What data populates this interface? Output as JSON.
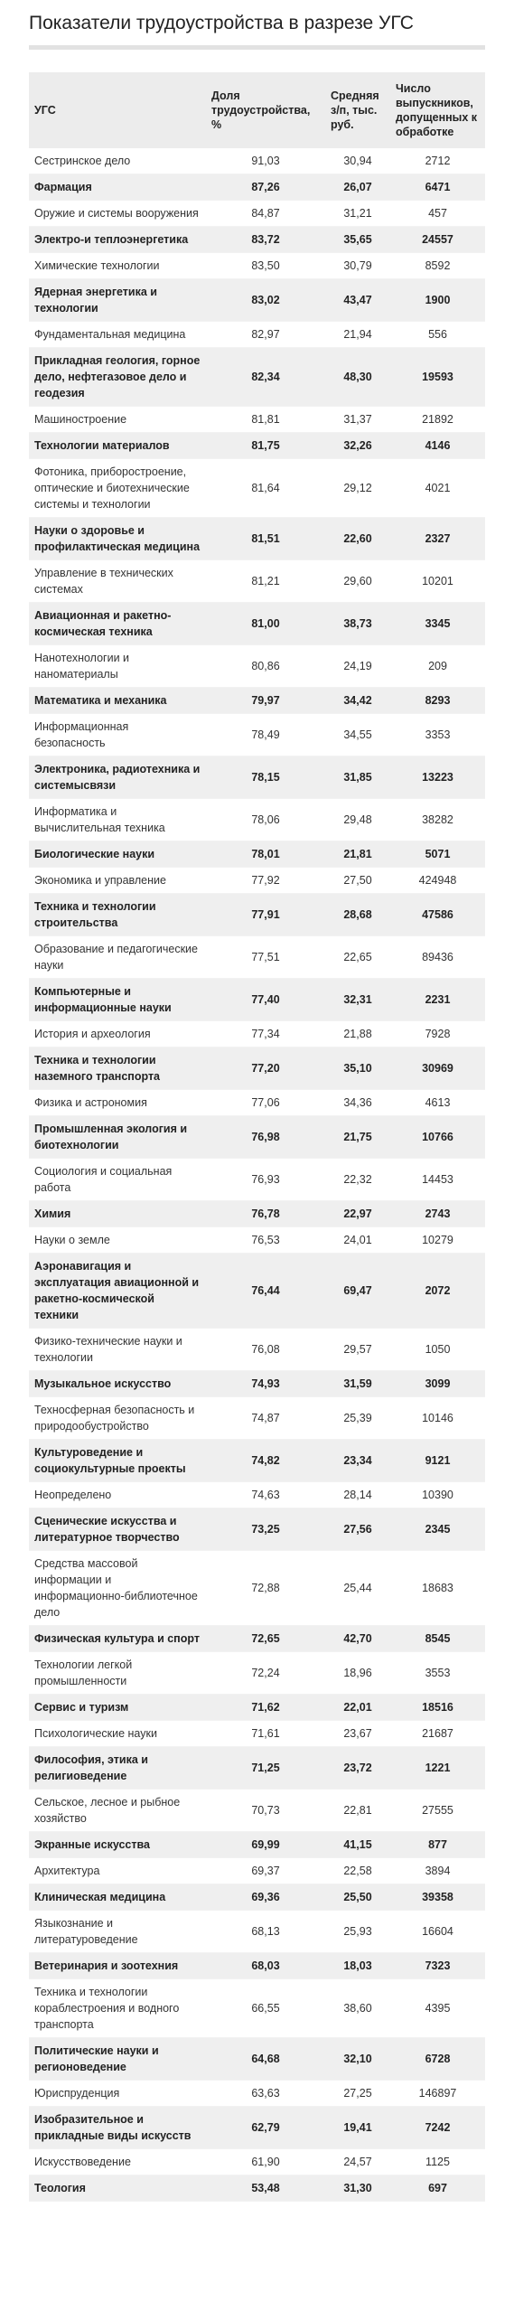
{
  "title": "Показатели трудоустройства в разрезе УГС",
  "table": {
    "headers": [
      "УГС",
      "Доля трудоустройства, %",
      "Средняя з/п, тыс. руб.",
      "Число выпускников, допущенных к обработке"
    ],
    "rows": [
      [
        "Сестринское дело",
        "91,03",
        "30,94",
        "2712"
      ],
      [
        "Фармация",
        "87,26",
        "26,07",
        "6471"
      ],
      [
        "Оружие и системы вооружения",
        "84,87",
        "31,21",
        "457"
      ],
      [
        "Электро-и теплоэнергетика",
        "83,72",
        "35,65",
        "24557"
      ],
      [
        "Химические технологии",
        "83,50",
        "30,79",
        "8592"
      ],
      [
        "Ядерная энергетика и технологии",
        "83,02",
        "43,47",
        "1900"
      ],
      [
        "Фундаментальная медицина",
        "82,97",
        "21,94",
        "556"
      ],
      [
        "Прикладная геология, горное дело, нефтегазовое дело и геодезия",
        "82,34",
        "48,30",
        "19593"
      ],
      [
        "Машиностроение",
        "81,81",
        "31,37",
        "21892"
      ],
      [
        "Технологии материалов",
        "81,75",
        "32,26",
        "4146"
      ],
      [
        "Фотоника, приборостроение, оптические и биотехнические системы и технологии",
        "81,64",
        "29,12",
        "4021"
      ],
      [
        "Науки о здоровье и профилактическая медицина",
        "81,51",
        "22,60",
        "2327"
      ],
      [
        "Управление в технических системах",
        "81,21",
        "29,60",
        "10201"
      ],
      [
        "Авиационная и ракетно-космическая техника",
        "81,00",
        "38,73",
        "3345"
      ],
      [
        "Нанотехнологии и наноматериалы",
        "80,86",
        "24,19",
        "209"
      ],
      [
        "Математика и механика",
        "79,97",
        "34,42",
        "8293"
      ],
      [
        "Информационная безопасность",
        "78,49",
        "34,55",
        "3353"
      ],
      [
        "Электроника, радиотехника и системысвязи",
        "78,15",
        "31,85",
        "13223"
      ],
      [
        "Информатика и вычислительная техника",
        "78,06",
        "29,48",
        "38282"
      ],
      [
        "Биологические науки",
        "78,01",
        "21,81",
        "5071"
      ],
      [
        "Экономика и управление",
        "77,92",
        "27,50",
        "424948"
      ],
      [
        "Техника и технологии строительства",
        "77,91",
        "28,68",
        "47586"
      ],
      [
        "Образование и педагогические науки",
        "77,51",
        "22,65",
        "89436"
      ],
      [
        "Компьютерные и информационные науки",
        "77,40",
        "32,31",
        "2231"
      ],
      [
        "История и археология",
        "77,34",
        "21,88",
        "7928"
      ],
      [
        "Техника и технологии наземного транспорта",
        "77,20",
        "35,10",
        "30969"
      ],
      [
        "Физика и астрономия",
        "77,06",
        "34,36",
        "4613"
      ],
      [
        "Промышленная экология и биотехнологии",
        "76,98",
        "21,75",
        "10766"
      ],
      [
        "Социология и социальная работа",
        "76,93",
        "22,32",
        "14453"
      ],
      [
        "Химия",
        "76,78",
        "22,97",
        "2743"
      ],
      [
        "Науки о земле",
        "76,53",
        "24,01",
        "10279"
      ],
      [
        "Аэронавигация и эксплуатация авиационной и ракетно-космической техники",
        "76,44",
        "69,47",
        "2072"
      ],
      [
        "Физико-технические науки и технологии",
        "76,08",
        "29,57",
        "1050"
      ],
      [
        "Музыкальное искусство",
        "74,93",
        "31,59",
        "3099"
      ],
      [
        "Техносферная безопасность и природообустройство",
        "74,87",
        "25,39",
        "10146"
      ],
      [
        "Культуроведение и социокультурные проекты",
        "74,82",
        "23,34",
        "9121"
      ],
      [
        "Неопределено",
        "74,63",
        "28,14",
        "10390"
      ],
      [
        "Сценические искусства и литературное творчество",
        "73,25",
        "27,56",
        "2345"
      ],
      [
        "Средства массовой информации и информационно-библиотечное дело",
        "72,88",
        "25,44",
        "18683"
      ],
      [
        "Физическая культура и спорт",
        "72,65",
        "42,70",
        "8545"
      ],
      [
        "Технологии легкой промышленности",
        "72,24",
        "18,96",
        "3553"
      ],
      [
        "Сервис и туризм",
        "71,62",
        "22,01",
        "18516"
      ],
      [
        "Психологические науки",
        "71,61",
        "23,67",
        "21687"
      ],
      [
        "Философия, этика и религиоведение",
        "71,25",
        "23,72",
        "1221"
      ],
      [
        "Сельское, лесное и рыбное хозяйство",
        "70,73",
        "22,81",
        "27555"
      ],
      [
        "Экранные искусства",
        "69,99",
        "41,15",
        "877"
      ],
      [
        "Архитектура",
        "69,37",
        "22,58",
        "3894"
      ],
      [
        "Клиническая медицина",
        "69,36",
        "25,50",
        "39358"
      ],
      [
        "Языкознание и литературоведение",
        "68,13",
        "25,93",
        "16604"
      ],
      [
        "Ветеринария и зоотехния",
        "68,03",
        "18,03",
        "7323"
      ],
      [
        "Техника и технологии кораблестроения и водного транспорта",
        "66,55",
        "38,60",
        "4395"
      ],
      [
        "Политические науки и регионоведение",
        "64,68",
        "32,10",
        "6728"
      ],
      [
        "Юриспруденция",
        "63,63",
        "27,25",
        "146897"
      ],
      [
        "Изобразительное и прикладные виды искусств",
        "62,79",
        "19,41",
        "7242"
      ],
      [
        "Искусствоведение",
        "61,90",
        "24,57",
        "1125"
      ],
      [
        "Теология",
        "53,48",
        "31,30",
        "697"
      ]
    ]
  }
}
